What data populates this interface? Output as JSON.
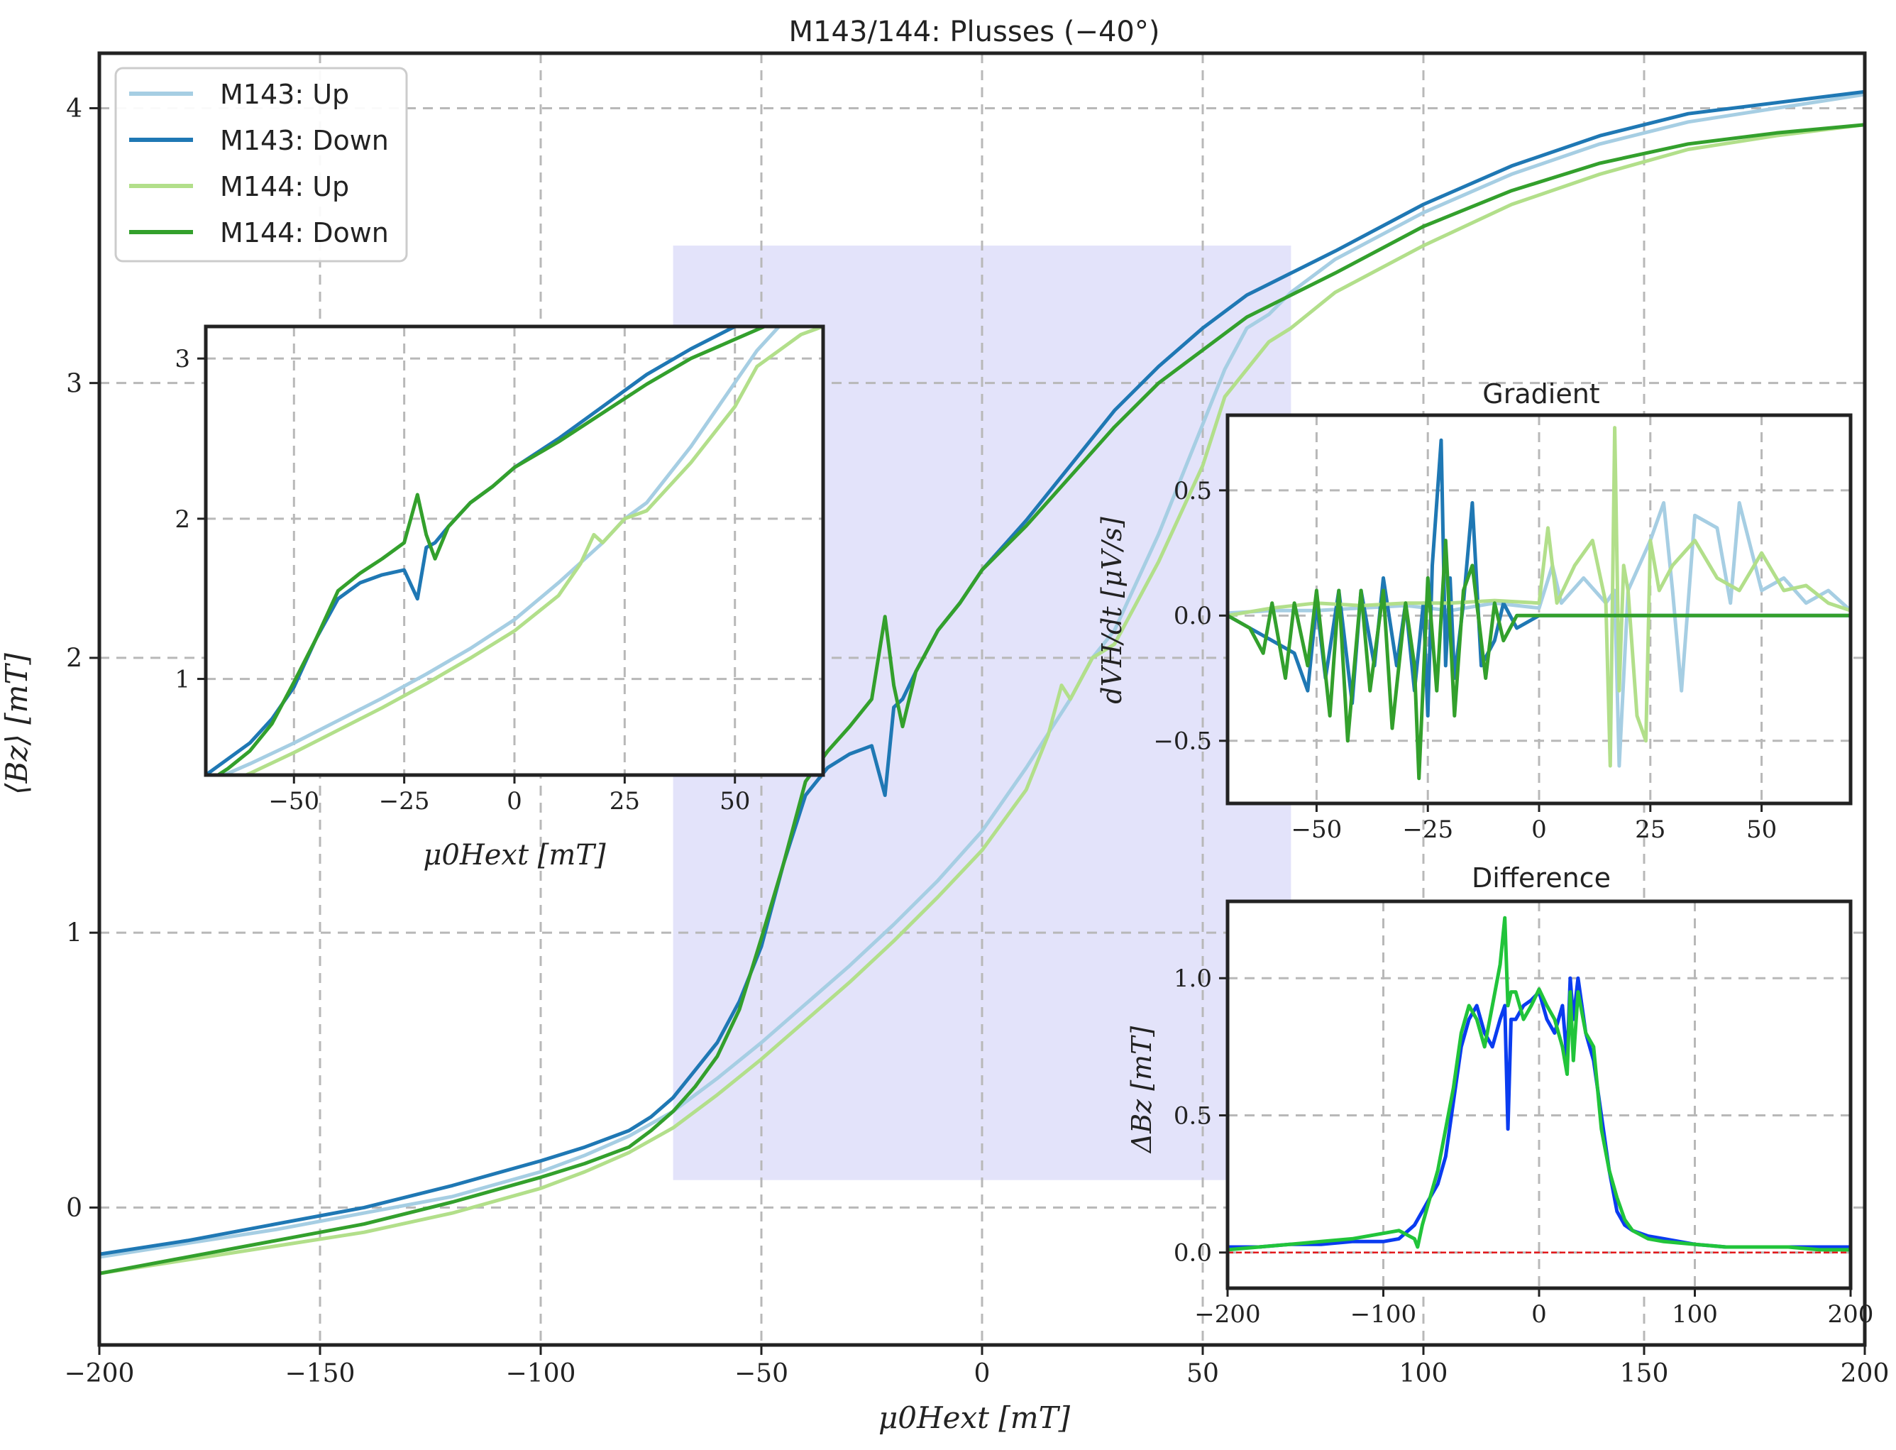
{
  "chart_data": [
    {
      "id": "main",
      "type": "line",
      "title": "M143/144: Plusses (−40°)",
      "xlabel": "μ0Hext [mT]",
      "ylabel": "⟨Bz⟩ [mT]",
      "xlim": [
        -200,
        200
      ],
      "ylim": [
        -0.5,
        4.2
      ],
      "xticks": [
        -200,
        -150,
        -100,
        -50,
        0,
        50,
        100,
        150,
        200
      ],
      "xtick_labels": [
        "−200",
        "−150",
        "−100",
        "−50",
        "0",
        "50",
        "100",
        "150",
        "200"
      ],
      "yticks": [
        0,
        1,
        2,
        3,
        4
      ],
      "ytick_labels": [
        "0",
        "1",
        "2",
        "3",
        "4"
      ],
      "grid": true,
      "legend_position": "top-left",
      "highlight_region": {
        "x": [
          -70,
          70
        ],
        "y": [
          0.1,
          3.5
        ],
        "color": "#e3e3fa"
      },
      "series": [
        {
          "name": "M143: Up",
          "color": "#a6cee3",
          "x": [
            -200,
            -180,
            -160,
            -140,
            -120,
            -100,
            -90,
            -80,
            -70,
            -60,
            -50,
            -40,
            -30,
            -20,
            -10,
            0,
            10,
            20,
            25,
            30,
            40,
            50,
            55,
            60,
            65,
            70,
            80,
            100,
            120,
            140,
            160,
            180,
            200
          ],
          "y": [
            -0.18,
            -0.13,
            -0.08,
            -0.02,
            0.04,
            0.13,
            0.19,
            0.26,
            0.35,
            0.47,
            0.6,
            0.74,
            0.88,
            1.03,
            1.19,
            1.37,
            1.6,
            1.85,
            2.0,
            2.1,
            2.45,
            2.85,
            3.05,
            3.2,
            3.25,
            3.33,
            3.45,
            3.62,
            3.76,
            3.87,
            3.95,
            4.0,
            4.05
          ]
        },
        {
          "name": "M143: Down",
          "color": "#1f78b4",
          "x": [
            -200,
            -180,
            -160,
            -140,
            -120,
            -100,
            -90,
            -80,
            -75,
            -70,
            -65,
            -60,
            -55,
            -50,
            -45,
            -40,
            -35,
            -30,
            -25,
            -22,
            -20,
            -18,
            -15,
            -10,
            -5,
            0,
            10,
            20,
            30,
            40,
            50,
            60,
            70,
            80,
            100,
            120,
            140,
            160,
            180,
            200
          ],
          "y": [
            -0.17,
            -0.12,
            -0.06,
            0.0,
            0.08,
            0.17,
            0.22,
            0.28,
            0.33,
            0.4,
            0.5,
            0.6,
            0.75,
            0.95,
            1.25,
            1.5,
            1.6,
            1.65,
            1.68,
            1.5,
            1.82,
            1.85,
            1.95,
            2.1,
            2.2,
            2.32,
            2.5,
            2.7,
            2.9,
            3.06,
            3.2,
            3.32,
            3.4,
            3.48,
            3.65,
            3.79,
            3.9,
            3.98,
            4.02,
            4.06
          ]
        },
        {
          "name": "M144: Up",
          "color": "#b2df8a",
          "x": [
            -200,
            -180,
            -160,
            -140,
            -120,
            -100,
            -90,
            -80,
            -70,
            -60,
            -50,
            -40,
            -30,
            -20,
            -10,
            0,
            10,
            15,
            18,
            20,
            25,
            30,
            40,
            50,
            55,
            60,
            65,
            70,
            80,
            100,
            120,
            140,
            160,
            180,
            200
          ],
          "y": [
            -0.24,
            -0.19,
            -0.14,
            -0.09,
            -0.02,
            0.07,
            0.13,
            0.2,
            0.29,
            0.41,
            0.54,
            0.68,
            0.82,
            0.97,
            1.13,
            1.3,
            1.52,
            1.72,
            1.9,
            1.85,
            2.0,
            2.05,
            2.35,
            2.7,
            2.95,
            3.05,
            3.15,
            3.2,
            3.33,
            3.5,
            3.65,
            3.76,
            3.85,
            3.9,
            3.94
          ]
        },
        {
          "name": "M144: Down",
          "color": "#33a02c",
          "x": [
            -200,
            -180,
            -160,
            -140,
            -120,
            -100,
            -90,
            -80,
            -75,
            -70,
            -65,
            -60,
            -55,
            -50,
            -45,
            -40,
            -35,
            -30,
            -25,
            -22,
            -20,
            -18,
            -15,
            -10,
            -5,
            0,
            10,
            20,
            30,
            40,
            50,
            60,
            70,
            80,
            100,
            120,
            140,
            160,
            180,
            200
          ],
          "y": [
            -0.24,
            -0.18,
            -0.12,
            -0.06,
            0.02,
            0.11,
            0.16,
            0.22,
            0.28,
            0.35,
            0.44,
            0.55,
            0.72,
            0.98,
            1.25,
            1.55,
            1.66,
            1.75,
            1.85,
            2.15,
            1.9,
            1.75,
            1.95,
            2.1,
            2.2,
            2.32,
            2.48,
            2.66,
            2.84,
            3.0,
            3.12,
            3.24,
            3.32,
            3.4,
            3.57,
            3.7,
            3.8,
            3.87,
            3.91,
            3.94
          ]
        }
      ]
    },
    {
      "id": "zoom",
      "type": "line",
      "title": "",
      "xlabel": "μ0Hext [mT]",
      "ylabel": "",
      "xlim": [
        -70,
        70
      ],
      "ylim": [
        0.4,
        3.2
      ],
      "xticks": [
        -50,
        -25,
        0,
        25,
        50
      ],
      "xtick_labels": [
        "−50",
        "−25",
        "0",
        "25",
        "50"
      ],
      "yticks": [
        1,
        2,
        3
      ],
      "ytick_labels": [
        "1",
        "2",
        "3"
      ],
      "grid": true,
      "series_from": "main"
    },
    {
      "id": "gradient",
      "type": "line",
      "title": "Gradient",
      "xlabel": "",
      "ylabel": "dVH/dt [μV/s]",
      "xlim": [
        -70,
        70
      ],
      "ylim": [
        -0.75,
        0.8
      ],
      "xticks": [
        -50,
        -25,
        0,
        25,
        50
      ],
      "xtick_labels": [
        "−50",
        "−25",
        "0",
        "25",
        "50"
      ],
      "yticks": [
        -0.5,
        0.0,
        0.5
      ],
      "ytick_labels": [
        "−0.5",
        "0.0",
        "0.5"
      ],
      "grid": true,
      "series": [
        {
          "name": "M143: Up",
          "color": "#a6cee3",
          "x": [
            -70,
            -60,
            -50,
            -40,
            -30,
            -20,
            -10,
            0,
            3,
            5,
            10,
            15,
            17,
            18,
            20,
            25,
            28,
            30,
            32,
            35,
            40,
            43,
            45,
            50,
            55,
            60,
            65,
            70
          ],
          "y": [
            0.01,
            0.02,
            0.02,
            0.03,
            0.04,
            0.02,
            0.05,
            0.03,
            0.2,
            0.05,
            0.15,
            0.05,
            0.1,
            -0.6,
            0.1,
            0.3,
            0.45,
            0.1,
            -0.3,
            0.4,
            0.35,
            0.05,
            0.45,
            0.1,
            0.15,
            0.05,
            0.1,
            0.02
          ]
        },
        {
          "name": "M143: Down",
          "color": "#1f78b4",
          "x": [
            -70,
            -65,
            -60,
            -55,
            -52,
            -50,
            -48,
            -45,
            -42,
            -40,
            -37,
            -35,
            -32,
            -30,
            -28,
            -26,
            -25,
            -24,
            -22,
            -21,
            -20,
            -19,
            -17,
            -15,
            -13,
            -10,
            -8,
            -5,
            0,
            10,
            20,
            30,
            40,
            50,
            60,
            70
          ],
          "y": [
            0.0,
            -0.05,
            -0.1,
            -0.15,
            -0.3,
            0.05,
            -0.25,
            0.1,
            -0.35,
            0.1,
            -0.2,
            0.15,
            -0.2,
            0.05,
            -0.3,
            0.05,
            -0.4,
            0.2,
            0.7,
            -0.2,
            0.15,
            -0.25,
            0.05,
            0.45,
            -0.2,
            -0.1,
            0.05,
            -0.05,
            0.0,
            0.0,
            0.0,
            0.0,
            0.0,
            0.0,
            0.0,
            0.0
          ]
        },
        {
          "name": "M144: Up",
          "color": "#b2df8a",
          "x": [
            -70,
            -60,
            -50,
            -40,
            -30,
            -20,
            -10,
            0,
            2,
            4,
            8,
            12,
            15,
            16,
            17,
            18,
            19,
            20,
            22,
            24,
            25,
            27,
            30,
            35,
            40,
            45,
            50,
            55,
            60,
            65,
            70
          ],
          "y": [
            0.0,
            0.03,
            0.05,
            0.04,
            0.05,
            0.05,
            0.06,
            0.05,
            0.35,
            0.05,
            0.2,
            0.3,
            0.05,
            -0.6,
            0.75,
            -0.3,
            0.2,
            0.1,
            -0.4,
            -0.5,
            0.3,
            0.1,
            0.2,
            0.3,
            0.15,
            0.1,
            0.25,
            0.1,
            0.12,
            0.05,
            0.02
          ]
        },
        {
          "name": "M144: Down",
          "color": "#33a02c",
          "x": [
            -70,
            -65,
            -62,
            -60,
            -57,
            -55,
            -52,
            -50,
            -47,
            -45,
            -43,
            -40,
            -38,
            -35,
            -33,
            -30,
            -28,
            -27,
            -25,
            -23,
            -21,
            -19,
            -17,
            -15,
            -12,
            -10,
            -8,
            -5,
            0,
            10,
            20,
            30,
            40,
            50,
            60,
            70
          ],
          "y": [
            0.0,
            -0.05,
            -0.15,
            0.05,
            -0.25,
            0.05,
            -0.2,
            0.1,
            -0.4,
            0.1,
            -0.5,
            0.1,
            -0.3,
            0.1,
            -0.45,
            0.05,
            -0.2,
            -0.65,
            0.15,
            -0.3,
            0.3,
            -0.4,
            0.1,
            0.2,
            -0.25,
            0.05,
            -0.1,
            0.0,
            0.0,
            0.0,
            0.0,
            0.0,
            0.0,
            0.0,
            0.0,
            0.0
          ]
        }
      ]
    },
    {
      "id": "difference",
      "type": "line",
      "title": "Difference",
      "xlabel": "",
      "ylabel": "ΔBz [mT]",
      "xlim": [
        -200,
        200
      ],
      "ylim": [
        -0.13,
        1.28
      ],
      "xticks": [
        -200,
        -100,
        0,
        100,
        200
      ],
      "xtick_labels": [
        "−200",
        "−100",
        "0",
        "100",
        "200"
      ],
      "yticks": [
        0.0,
        0.5,
        1.0
      ],
      "ytick_labels": [
        "0.0",
        "0.5",
        "1.0"
      ],
      "grid": true,
      "reference_line": {
        "y": 0,
        "color": "#e31a1c"
      },
      "series": [
        {
          "name": "M143",
          "color": "#0a3cf0",
          "x": [
            -200,
            -180,
            -160,
            -140,
            -120,
            -100,
            -90,
            -80,
            -75,
            -70,
            -65,
            -60,
            -55,
            -50,
            -45,
            -40,
            -35,
            -30,
            -25,
            -22,
            -20,
            -18,
            -15,
            -10,
            -5,
            0,
            5,
            10,
            15,
            18,
            20,
            22,
            25,
            30,
            35,
            40,
            45,
            50,
            55,
            60,
            70,
            80,
            100,
            120,
            140,
            160,
            180,
            200
          ],
          "y": [
            0.02,
            0.02,
            0.03,
            0.03,
            0.04,
            0.04,
            0.05,
            0.1,
            0.15,
            0.2,
            0.25,
            0.35,
            0.55,
            0.75,
            0.85,
            0.9,
            0.8,
            0.75,
            0.85,
            0.9,
            0.45,
            0.85,
            0.85,
            0.9,
            0.92,
            0.95,
            0.85,
            0.8,
            0.9,
            0.7,
            1.0,
            0.85,
            1.0,
            0.8,
            0.7,
            0.5,
            0.3,
            0.15,
            0.1,
            0.08,
            0.06,
            0.05,
            0.03,
            0.02,
            0.02,
            0.02,
            0.02,
            0.02
          ]
        },
        {
          "name": "M144",
          "color": "#21c43a",
          "x": [
            -200,
            -180,
            -160,
            -140,
            -120,
            -100,
            -90,
            -80,
            -78,
            -75,
            -70,
            -65,
            -60,
            -55,
            -50,
            -45,
            -40,
            -35,
            -30,
            -25,
            -22,
            -20,
            -18,
            -15,
            -10,
            -5,
            0,
            5,
            10,
            15,
            18,
            20,
            22,
            25,
            30,
            35,
            40,
            45,
            50,
            55,
            60,
            70,
            80,
            100,
            120,
            140,
            160,
            180,
            200
          ],
          "y": [
            0.01,
            0.02,
            0.03,
            0.04,
            0.05,
            0.07,
            0.08,
            0.05,
            0.02,
            0.1,
            0.2,
            0.3,
            0.45,
            0.6,
            0.8,
            0.9,
            0.85,
            0.75,
            0.9,
            1.05,
            1.22,
            0.9,
            0.95,
            0.95,
            0.85,
            0.9,
            0.96,
            0.9,
            0.85,
            0.75,
            0.65,
            0.95,
            0.7,
            0.95,
            0.8,
            0.75,
            0.45,
            0.3,
            0.2,
            0.12,
            0.08,
            0.05,
            0.04,
            0.03,
            0.02,
            0.02,
            0.02,
            0.01,
            0.01
          ]
        }
      ]
    }
  ]
}
